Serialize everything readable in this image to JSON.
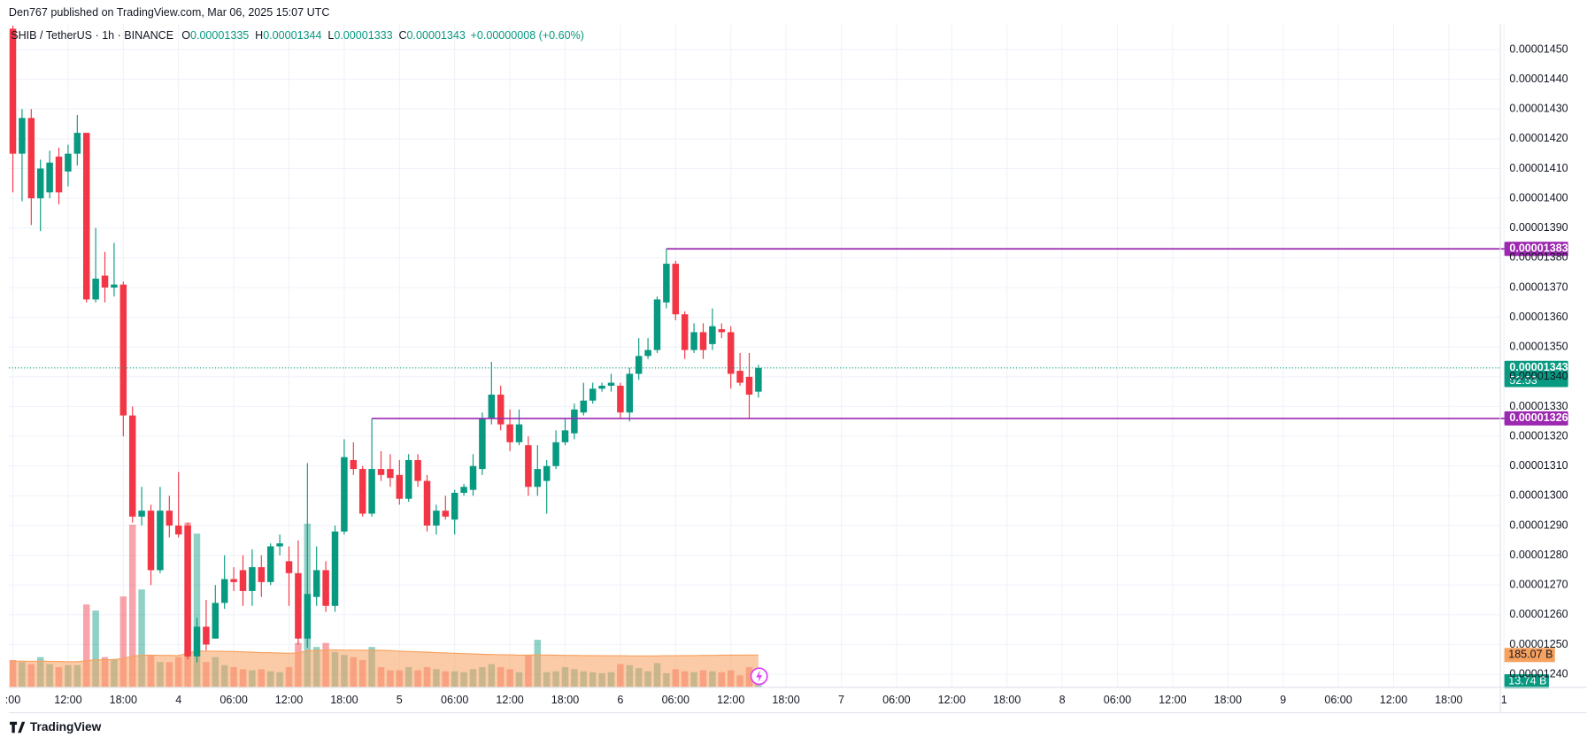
{
  "chart_data": {
    "type": "candlestick",
    "publisher": "Den767 published on TradingView.com, Mar 06, 2025 15:07 UTC",
    "title": "SHIB / TetherUS · 1h · BINANCE",
    "ohlc_letters": [
      "O",
      "H",
      "L",
      "C"
    ],
    "change_label": "+0.00000008 (+0.60%)",
    "up_color": "#089981",
    "down_color": "#f23645",
    "open": [
      1.457e-05,
      1.415e-05,
      1.427e-05,
      1.4e-05,
      1.402e-05,
      1.414e-05,
      1.409e-05,
      1.415e-05,
      1.422e-05,
      1.366e-05,
      1.374e-05,
      1.37e-05,
      1.371e-05,
      1.327e-05,
      1.293e-05,
      1.295e-05,
      1.275e-05,
      1.295e-05,
      1.29e-05,
      1.29e-05,
      1.246e-05,
      1.256e-05,
      1.252e-05,
      1.264e-05,
      1.272e-05,
      1.275e-05,
      1.268e-05,
      1.276e-05,
      1.271e-05,
      1.283e-05,
      1.278e-05,
      1.274e-05,
      1.252e-05,
      1.266e-05,
      1.275e-05,
      1.263e-05,
      1.288e-05,
      1.312e-05,
      1.309e-05,
      1.294e-05,
      1.309e-05,
      1.309e-05,
      1.307e-05,
      1.299e-05,
      1.312e-05,
      1.305e-05,
      1.29e-05,
      1.295e-05,
      1.292e-05,
      1.301e-05,
      1.302e-05,
      1.309e-05,
      1.326e-05,
      1.334e-05,
      1.324e-05,
      1.318e-05,
      1.317e-05,
      1.303e-05,
      1.305e-05,
      1.31e-05,
      1.318e-05,
      1.321e-05,
      1.328e-05,
      1.332e-05,
      1.336e-05,
      1.337e-05,
      1.337e-05,
      1.328e-05,
      1.341e-05,
      1.347e-05,
      1.349e-05,
      1.365e-05,
      1.378e-05,
      1.361e-05,
      1.349e-05,
      1.355e-05,
      1.351e-05,
      1.356e-05,
      1.355e-05,
      1.342e-05,
      1.34e-05,
      1.335e-05
    ],
    "high": [
      1.458e-05,
      1.43e-05,
      1.43e-05,
      1.413e-05,
      1.416e-05,
      1.417e-05,
      1.418e-05,
      1.428e-05,
      1.422e-05,
      1.39e-05,
      1.382e-05,
      1.385e-05,
      1.372e-05,
      1.33e-05,
      1.303e-05,
      1.297e-05,
      1.303e-05,
      1.3e-05,
      1.308e-05,
      1.291e-05,
      1.259e-05,
      1.265e-05,
      1.27e-05,
      1.28e-05,
      1.276e-05,
      1.28e-05,
      1.282e-05,
      1.28e-05,
      1.284e-05,
      1.287e-05,
      1.283e-05,
      1.285e-05,
      1.311e-05,
      1.283e-05,
      1.278e-05,
      1.29e-05,
      1.319e-05,
      1.318e-05,
      1.31e-05,
      1.326e-05,
      1.315e-05,
      1.314e-05,
      1.312e-05,
      1.314e-05,
      1.314e-05,
      1.307e-05,
      1.297e-05,
      1.3e-05,
      1.302e-05,
      1.304e-05,
      1.314e-05,
      1.328e-05,
      1.345e-05,
      1.337e-05,
      1.329e-05,
      1.329e-05,
      1.32e-05,
      1.317e-05,
      1.312e-05,
      1.322e-05,
      1.326e-05,
      1.331e-05,
      1.338e-05,
      1.338e-05,
      1.338e-05,
      1.341e-05,
      1.338e-05,
      1.343e-05,
      1.353e-05,
      1.353e-05,
      1.367e-05,
      1.383e-05,
      1.379e-05,
      1.362e-05,
      1.358e-05,
      1.358e-05,
      1.363e-05,
      1.358e-05,
      1.357e-05,
      1.348e-05,
      1.348e-05,
      1.344e-05
    ],
    "low": [
      1.402e-05,
      1.399e-05,
      1.391e-05,
      1.389e-05,
      1.4e-05,
      1.398e-05,
      1.404e-05,
      1.411e-05,
      1.365e-05,
      1.365e-05,
      1.365e-05,
      1.367e-05,
      1.32e-05,
      1.291e-05,
      1.29e-05,
      1.27e-05,
      1.274e-05,
      1.286e-05,
      1.286e-05,
      1.245e-05,
      1.244e-05,
      1.248e-05,
      1.252e-05,
      1.262e-05,
      1.268e-05,
      1.263e-05,
      1.263e-05,
      1.266e-05,
      1.27e-05,
      1.28e-05,
      1.263e-05,
      1.25e-05,
      1.249e-05,
      1.263e-05,
      1.261e-05,
      1.261e-05,
      1.287e-05,
      1.307e-05,
      1.293e-05,
      1.293e-05,
      1.305e-05,
      1.303e-05,
      1.297e-05,
      1.298e-05,
      1.303e-05,
      1.288e-05,
      1.287e-05,
      1.292e-05,
      1.287e-05,
      1.3e-05,
      1.3e-05,
      1.307e-05,
      1.324e-05,
      1.322e-05,
      1.315e-05,
      1.317e-05,
      1.3e-05,
      1.3e-05,
      1.294e-05,
      1.309e-05,
      1.317e-05,
      1.319e-05,
      1.327e-05,
      1.331e-05,
      1.335e-05,
      1.335e-05,
      1.326e-05,
      1.325e-05,
      1.339e-05,
      1.346e-05,
      1.348e-05,
      1.363e-05,
      1.359e-05,
      1.346e-05,
      1.348e-05,
      1.346e-05,
      1.349e-05,
      1.353e-05,
      1.336e-05,
      1.337e-05,
      1.326e-05,
      1.333e-05
    ],
    "close": [
      1.415e-05,
      1.427e-05,
      1.4e-05,
      1.41e-05,
      1.412e-05,
      1.402e-05,
      1.415e-05,
      1.422e-05,
      1.366e-05,
      1.373e-05,
      1.37e-05,
      1.371e-05,
      1.327e-05,
      1.293e-05,
      1.295e-05,
      1.275e-05,
      1.295e-05,
      1.29e-05,
      1.287e-05,
      1.246e-05,
      1.256e-05,
      1.25e-05,
      1.264e-05,
      1.272e-05,
      1.271e-05,
      1.268e-05,
      1.276e-05,
      1.271e-05,
      1.283e-05,
      1.284e-05,
      1.274e-05,
      1.252e-05,
      1.267e-05,
      1.275e-05,
      1.263e-05,
      1.288e-05,
      1.313e-05,
      1.309e-05,
      1.294e-05,
      1.309e-05,
      1.307e-05,
      1.306e-05,
      1.299e-05,
      1.312e-05,
      1.305e-05,
      1.29e-05,
      1.295e-05,
      1.293e-05,
      1.301e-05,
      1.303e-05,
      1.31e-05,
      1.326e-05,
      1.334e-05,
      1.324e-05,
      1.318e-05,
      1.324e-05,
      1.303e-05,
      1.309e-05,
      1.31e-05,
      1.318e-05,
      1.322e-05,
      1.329e-05,
      1.332e-05,
      1.336e-05,
      1.337e-05,
      1.338e-05,
      1.328e-05,
      1.341e-05,
      1.347e-05,
      1.349e-05,
      1.366e-05,
      1.378e-05,
      1.361e-05,
      1.349e-05,
      1.355e-05,
      1.349e-05,
      1.357e-05,
      1.355e-05,
      1.341e-05,
      1.338e-05,
      1.334e-05,
      1.343e-05
    ],
    "volume": {
      "values": [
        156,
        145,
        133,
        173,
        133,
        116,
        127,
        127,
        474,
        439,
        173,
        162,
        520,
        930,
        560,
        185,
        145,
        145,
        173,
        942,
        879,
        145,
        173,
        127,
        116,
        104,
        98,
        104,
        92,
        87,
        116,
        254,
        936,
        231,
        254,
        202,
        185,
        173,
        156,
        231,
        116,
        98,
        98,
        116,
        98,
        116,
        104,
        92,
        92,
        87,
        104,
        116,
        133,
        116,
        104,
        87,
        185,
        272,
        87,
        92,
        116,
        104,
        92,
        87,
        81,
        87,
        133,
        127,
        110,
        92,
        139,
        81,
        104,
        92,
        87,
        98,
        92,
        87,
        98,
        69,
        116,
        13.74
      ],
      "last_label": "13.74 B"
    },
    "volume_ma": {
      "color": "#f7a15e",
      "values": [
        150,
        150,
        149,
        150,
        149,
        148,
        147,
        147,
        152,
        158,
        158,
        159,
        165,
        178,
        184,
        184,
        183,
        183,
        182,
        196,
        208,
        207,
        207,
        206,
        205,
        203,
        201,
        199,
        198,
        196,
        195,
        197,
        210,
        211,
        213,
        214,
        213,
        213,
        212,
        213,
        212,
        210,
        207,
        205,
        203,
        201,
        199,
        197,
        195,
        193,
        191,
        189,
        188,
        187,
        186,
        184,
        184,
        186,
        185,
        184,
        183,
        183,
        182,
        182,
        181,
        181,
        181,
        180,
        180,
        180,
        180,
        181,
        181,
        182,
        182,
        183,
        183,
        184,
        184,
        184,
        185,
        185.07
      ],
      "last_label": "185.07 B"
    },
    "volume_ylim": [
      0,
      3790
    ],
    "levels": [
      {
        "value": 1.383e-05,
        "label": "0.00001383"
      },
      {
        "value": 1.326e-05,
        "label": "0.00001326"
      }
    ],
    "level_color": "#9c27b0",
    "countdown": "52:53",
    "ylim": [
      1.2356e-05,
      1.4585e-05
    ],
    "yticks": [
      {
        "value": 1.24e-05,
        "label": "0.00001240"
      },
      {
        "value": 1.25e-05,
        "label": "0.00001250"
      },
      {
        "value": 1.26e-05,
        "label": "0.00001260"
      },
      {
        "value": 1.27e-05,
        "label": "0.00001270"
      },
      {
        "value": 1.28e-05,
        "label": "0.00001280"
      },
      {
        "value": 1.29e-05,
        "label": "0.00001290"
      },
      {
        "value": 1.3e-05,
        "label": "0.00001300"
      },
      {
        "value": 1.31e-05,
        "label": "0.00001310"
      },
      {
        "value": 1.32e-05,
        "label": "0.00001320"
      },
      {
        "value": 1.33e-05,
        "label": "0.00001330"
      },
      {
        "value": 1.34e-05,
        "label": "0.00001340"
      },
      {
        "value": 1.35e-05,
        "label": "0.00001350"
      },
      {
        "value": 1.36e-05,
        "label": "0.00001360"
      },
      {
        "value": 1.37e-05,
        "label": "0.00001370"
      },
      {
        "value": 1.38e-05,
        "label": "0.00001380"
      },
      {
        "value": 1.39e-05,
        "label": "0.00001390"
      },
      {
        "value": 1.4e-05,
        "label": "0.00001400"
      },
      {
        "value": 1.41e-05,
        "label": "0.00001410"
      },
      {
        "value": 1.42e-05,
        "label": "0.00001420"
      },
      {
        "value": 1.43e-05,
        "label": "0.00001430"
      },
      {
        "value": 1.44e-05,
        "label": "0.00001440"
      },
      {
        "value": 1.45e-05,
        "label": "0.00001450"
      }
    ],
    "xlim": [
      -0.44,
      161.6
    ],
    "xticks": [
      {
        "value": 0,
        "label": ":00"
      },
      {
        "value": 6,
        "label": "12:00"
      },
      {
        "value": 12,
        "label": "18:00"
      },
      {
        "value": 18,
        "label": "4"
      },
      {
        "value": 24,
        "label": "06:00"
      },
      {
        "value": 30,
        "label": "12:00"
      },
      {
        "value": 36,
        "label": "18:00"
      },
      {
        "value": 42,
        "label": "5"
      },
      {
        "value": 48,
        "label": "06:00"
      },
      {
        "value": 54,
        "label": "12:00"
      },
      {
        "value": 60,
        "label": "18:00"
      },
      {
        "value": 66,
        "label": "6"
      },
      {
        "value": 72,
        "label": "06:00"
      },
      {
        "value": 78,
        "label": "12:00"
      },
      {
        "value": 84,
        "label": "18:00"
      },
      {
        "value": 90,
        "label": "7"
      },
      {
        "value": 96,
        "label": "06:00"
      },
      {
        "value": 102,
        "label": "12:00"
      },
      {
        "value": 108,
        "label": "18:00"
      },
      {
        "value": 114,
        "label": "8"
      },
      {
        "value": 120,
        "label": "06:00"
      },
      {
        "value": 126,
        "label": "12:00"
      },
      {
        "value": 132,
        "label": "18:00"
      },
      {
        "value": 138,
        "label": "9"
      },
      {
        "value": 144,
        "label": "06:00"
      },
      {
        "value": 150,
        "label": "12:00"
      },
      {
        "value": 156,
        "label": "18:00"
      },
      {
        "value": 162,
        "label": "1"
      }
    ],
    "grid": true,
    "watermark": "TradingView"
  }
}
